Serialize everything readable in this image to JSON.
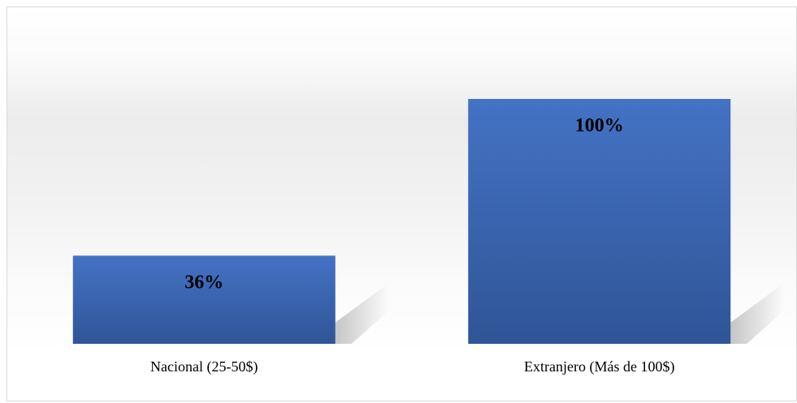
{
  "chart_data": {
    "type": "bar",
    "categories": [
      "Nacional (25-50$)",
      "Extranjero (Más de 100$)"
    ],
    "values": [
      36,
      100
    ],
    "data_labels": [
      "36%",
      "100%"
    ],
    "ylim": [
      0,
      100
    ],
    "grid": false,
    "legend": "none",
    "colors": {
      "bar_top": "#4472c4",
      "bar_bottom": "#2f5597",
      "shadow": "#bfbfbf"
    }
  }
}
